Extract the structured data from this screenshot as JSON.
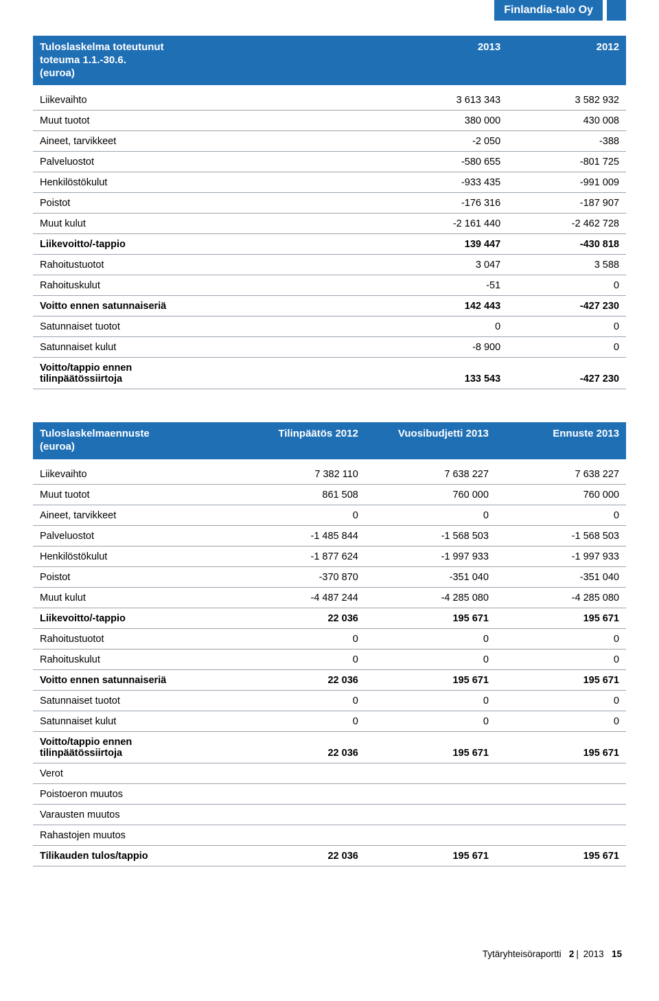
{
  "colors": {
    "brand": "#1f6fb5",
    "text": "#000000",
    "row_border": "#9aa3ad",
    "background": "#ffffff"
  },
  "company_tab": "Finlandia-talo Oy",
  "table1": {
    "title_line1": "Tuloslaskelma toteutunut",
    "title_line2": "toteuma 1.1.-30.6.",
    "title_line3": "(euroa)",
    "col_headers": [
      "2013",
      "2012"
    ],
    "col_widths": [
      "60%",
      "20%",
      "20%"
    ],
    "rows": [
      {
        "label": "Liikevaihto",
        "vals": [
          "3 613 343",
          "3 582 932"
        ],
        "bold": false
      },
      {
        "label": "Muut tuotot",
        "vals": [
          "380 000",
          "430 008"
        ],
        "bold": false
      },
      {
        "label": "Aineet, tarvikkeet",
        "vals": [
          "-2 050",
          "-388"
        ],
        "bold": false
      },
      {
        "label": "Palveluostot",
        "vals": [
          "-580 655",
          "-801 725"
        ],
        "bold": false
      },
      {
        "label": "Henkilöstökulut",
        "vals": [
          "-933 435",
          "-991 009"
        ],
        "bold": false
      },
      {
        "label": "Poistot",
        "vals": [
          "-176 316",
          "-187 907"
        ],
        "bold": false
      },
      {
        "label": "Muut kulut",
        "vals": [
          "-2 161 440",
          "-2 462 728"
        ],
        "bold": false
      },
      {
        "label": "Liikevoitto/-tappio",
        "vals": [
          "139 447",
          "-430 818"
        ],
        "bold": true
      },
      {
        "label": "Rahoitustuotot",
        "vals": [
          "3 047",
          "3 588"
        ],
        "bold": false
      },
      {
        "label": "Rahoituskulut",
        "vals": [
          "-51",
          "0"
        ],
        "bold": false
      },
      {
        "label": "Voitto ennen satunnaiseriä",
        "vals": [
          "142 443",
          "-427 230"
        ],
        "bold": true
      },
      {
        "label": "Satunnaiset tuotot",
        "vals": [
          "0",
          "0"
        ],
        "bold": false
      },
      {
        "label": "Satunnaiset kulut",
        "vals": [
          "-8 900",
          "0"
        ],
        "bold": false
      },
      {
        "label": "Voitto/tappio ennen\ntilinpäätössiirtoja",
        "vals": [
          "133 543",
          "-427 230"
        ],
        "bold": true
      }
    ]
  },
  "table2": {
    "title_line1": "Tuloslaskelmaennuste",
    "title_line2": "(euroa)",
    "col_headers": [
      "Tilinpäätös 2012",
      "Vuosibudjetti 2013",
      "Ennuste 2013"
    ],
    "col_widths": [
      "34%",
      "22%",
      "22%",
      "22%"
    ],
    "rows": [
      {
        "label": "Liikevaihto",
        "vals": [
          "7 382 110",
          "7 638 227",
          "7 638 227"
        ],
        "bold": false
      },
      {
        "label": "Muut tuotot",
        "vals": [
          "861 508",
          "760 000",
          "760 000"
        ],
        "bold": false
      },
      {
        "label": "Aineet, tarvikkeet",
        "vals": [
          "0",
          "0",
          "0"
        ],
        "bold": false
      },
      {
        "label": "Palveluostot",
        "vals": [
          "-1 485 844",
          "-1 568 503",
          "-1 568 503"
        ],
        "bold": false
      },
      {
        "label": "Henkilöstökulut",
        "vals": [
          "-1 877 624",
          "-1 997 933",
          "-1 997 933"
        ],
        "bold": false
      },
      {
        "label": "Poistot",
        "vals": [
          "-370 870",
          "-351 040",
          "-351 040"
        ],
        "bold": false
      },
      {
        "label": "Muut kulut",
        "vals": [
          "-4 487 244",
          "-4 285 080",
          "-4 285 080"
        ],
        "bold": false
      },
      {
        "label": "Liikevoitto/-tappio",
        "vals": [
          "22 036",
          "195 671",
          "195 671"
        ],
        "bold": true
      },
      {
        "label": "Rahoitustuotot",
        "vals": [
          "0",
          "0",
          "0"
        ],
        "bold": false
      },
      {
        "label": "Rahoituskulut",
        "vals": [
          "0",
          "0",
          "0"
        ],
        "bold": false
      },
      {
        "label": "Voitto ennen satunnaiseriä",
        "vals": [
          "22 036",
          "195 671",
          "195 671"
        ],
        "bold": true
      },
      {
        "label": "Satunnaiset tuotot",
        "vals": [
          "0",
          "0",
          "0"
        ],
        "bold": false
      },
      {
        "label": "Satunnaiset kulut",
        "vals": [
          "0",
          "0",
          "0"
        ],
        "bold": false
      },
      {
        "label": "Voitto/tappio ennen\ntilinpäätössiirtoja",
        "vals": [
          "22 036",
          "195 671",
          "195 671"
        ],
        "bold": true
      },
      {
        "label": "Verot",
        "vals": [
          "",
          "",
          ""
        ],
        "bold": false
      },
      {
        "label": "Poistoeron muutos",
        "vals": [
          "",
          "",
          ""
        ],
        "bold": false
      },
      {
        "label": "Varausten muutos",
        "vals": [
          "",
          "",
          ""
        ],
        "bold": false
      },
      {
        "label": "Rahastojen muutos",
        "vals": [
          "",
          "",
          ""
        ],
        "bold": false
      },
      {
        "label": "Tilikauden tulos/tappio",
        "vals": [
          "22 036",
          "195 671",
          "195 671"
        ],
        "bold": true
      }
    ]
  },
  "footer": {
    "doc": "Tytäryhteisöraportti",
    "issue": "2",
    "year": "2013",
    "page": "15"
  }
}
